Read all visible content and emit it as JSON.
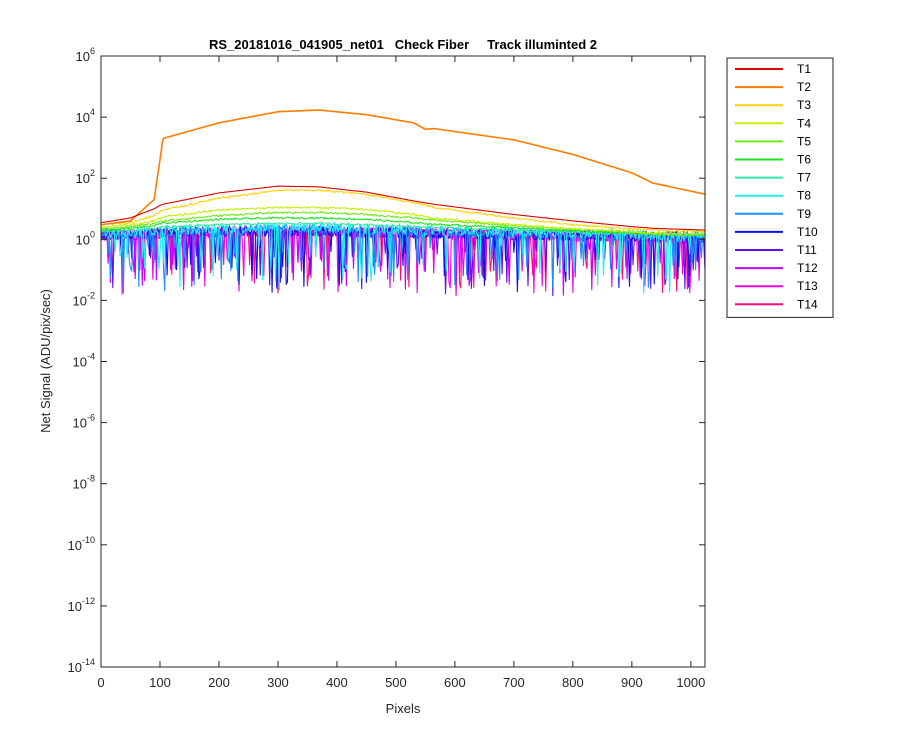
{
  "chart_data": {
    "type": "line",
    "title": "RS_20181016_041905_net01   Check Fiber     Track illuminted 2",
    "xlabel": "Pixels",
    "ylabel": "Net Signal (ADU/pix/sec)",
    "xlim": [
      0,
      1024
    ],
    "ylim": [
      1e-14,
      1000000.0
    ],
    "yscale": "log",
    "grid": false,
    "legend_position": "outside-top-right",
    "xticks": [
      "0",
      "100",
      "200",
      "300",
      "400",
      "500",
      "600",
      "700",
      "800",
      "900",
      "1000"
    ],
    "yticks": [
      {
        "base": "10",
        "exp": "-14"
      },
      {
        "base": "10",
        "exp": "-12"
      },
      {
        "base": "10",
        "exp": "-10"
      },
      {
        "base": "10",
        "exp": "-8"
      },
      {
        "base": "10",
        "exp": "-6"
      },
      {
        "base": "10",
        "exp": "-4"
      },
      {
        "base": "10",
        "exp": "-2"
      },
      {
        "base": "10",
        "exp": "0"
      },
      {
        "base": "10",
        "exp": "2"
      },
      {
        "base": "10",
        "exp": "4"
      },
      {
        "base": "10",
        "exp": "6"
      }
    ],
    "x": [
      0,
      50,
      90,
      100,
      105,
      200,
      300,
      370,
      450,
      530,
      550,
      565,
      700,
      800,
      900,
      935,
      1024
    ],
    "series": [
      {
        "name": "T1",
        "color": "#e00000",
        "values": [
          3.5,
          5,
          10,
          13,
          14,
          33,
          55,
          52,
          35,
          18,
          15.5,
          14,
          6.5,
          4,
          2.6,
          2.3,
          2
        ]
      },
      {
        "name": "T2",
        "color": "#ff7c00",
        "values": [
          3,
          4,
          20,
          400,
          2000,
          6500,
          15000,
          17000,
          12000,
          6500,
          4000,
          4200,
          1800,
          600,
          150,
          70,
          30
        ]
      },
      {
        "name": "T3",
        "color": "#ffd200",
        "values": [
          3,
          3.5,
          6,
          8,
          9,
          22,
          40,
          40,
          30,
          16,
          13,
          11,
          5,
          3,
          2.2,
          2,
          1.8
        ]
      },
      {
        "name": "T4",
        "color": "#c3f000",
        "values": [
          2.5,
          3,
          4,
          5,
          5.5,
          9,
          11,
          11,
          9.5,
          6.5,
          5.5,
          5,
          3,
          2.2,
          1.8,
          1.6,
          1.5
        ]
      },
      {
        "name": "T5",
        "color": "#70e81c",
        "values": [
          2.2,
          2.6,
          3.3,
          3.8,
          4,
          6,
          7.5,
          7.5,
          6.5,
          5,
          4.5,
          4.2,
          2.8,
          2.1,
          1.7,
          1.5,
          1.4
        ]
      },
      {
        "name": "T6",
        "color": "#1ee21e",
        "values": [
          2,
          2.3,
          2.8,
          3.2,
          3.4,
          4.5,
          5,
          5,
          4.5,
          3.5,
          3.3,
          3.1,
          2.4,
          1.9,
          1.6,
          1.5,
          1.4
        ]
      },
      {
        "name": "T7",
        "color": "#2ee8a0",
        "values": [
          1.8,
          2,
          2.2,
          2.4,
          2.5,
          3,
          3.3,
          3.3,
          3,
          2.6,
          2.5,
          2.4,
          2,
          1.7,
          1.5,
          1.4,
          1.3
        ]
      },
      {
        "name": "T8",
        "color": "#22f0f0",
        "values": [
          1.6,
          1.8,
          1.9,
          2,
          2,
          2.3,
          2.5,
          2.5,
          2.3,
          2.1,
          2,
          2,
          1.8,
          1.6,
          1.4,
          1.3,
          1.2
        ]
      },
      {
        "name": "T9",
        "color": "#1e90ff",
        "values": [
          1.5,
          1.6,
          1.7,
          1.8,
          1.8,
          2,
          2.1,
          2.1,
          2,
          1.9,
          1.8,
          1.8,
          1.6,
          1.5,
          1.3,
          1.3,
          1.2
        ]
      },
      {
        "name": "T10",
        "color": "#0a10e8",
        "values": [
          1.4,
          1.5,
          1.6,
          1.6,
          1.6,
          1.8,
          1.9,
          1.9,
          1.8,
          1.7,
          1.7,
          1.6,
          1.5,
          1.4,
          1.3,
          1.2,
          1.2
        ]
      },
      {
        "name": "T11",
        "color": "#6010e8",
        "values": [
          1.4,
          1.5,
          1.5,
          1.6,
          1.6,
          1.7,
          1.8,
          1.8,
          1.7,
          1.6,
          1.6,
          1.6,
          1.5,
          1.4,
          1.3,
          1.2,
          1.1
        ]
      },
      {
        "name": "T12",
        "color": "#c800ff",
        "values": [
          1.3,
          1.4,
          1.5,
          1.5,
          1.5,
          1.7,
          1.8,
          1.8,
          1.7,
          1.6,
          1.6,
          1.5,
          1.4,
          1.3,
          1.2,
          1.2,
          1.1
        ]
      },
      {
        "name": "T13",
        "color": "#f000e0",
        "values": [
          1.3,
          1.4,
          1.5,
          1.5,
          1.5,
          1.7,
          1.8,
          1.8,
          1.7,
          1.6,
          1.6,
          1.5,
          1.4,
          1.3,
          1.2,
          1.2,
          1.1
        ]
      },
      {
        "name": "T14",
        "color": "#ff0a78",
        "values": [
          1.3,
          1.4,
          1.5,
          1.5,
          1.5,
          1.7,
          1.8,
          1.8,
          1.7,
          1.6,
          1.6,
          1.5,
          1.4,
          1.3,
          1.2,
          1.2,
          1.1
        ]
      }
    ]
  }
}
